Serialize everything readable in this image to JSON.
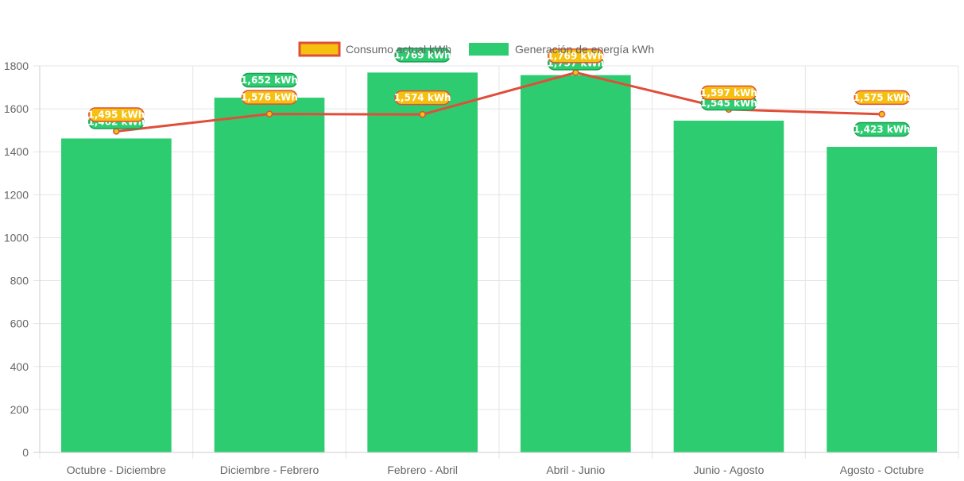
{
  "chart_data": {
    "type": "bar",
    "categories": [
      "Octubre - Diciembre",
      "Diciembre - Febrero",
      "Febrero - Abril",
      "Abril - Junio",
      "Junio - Agosto",
      "Agosto - Octubre"
    ],
    "series": [
      {
        "name": "Consumo actual kWh",
        "type": "line",
        "values": [
          1495,
          1576,
          1574,
          1769,
          1597,
          1575
        ],
        "labels": [
          "1,495 kWh",
          "1,576 kWh",
          "1,574 kWh",
          "1,769 kWh",
          "1,597 kWh",
          "1,575 kWh"
        ],
        "color": "#e04e3a",
        "label_color": "#f5c010"
      },
      {
        "name": "Generación de energía kWh",
        "type": "bar",
        "values": [
          1462,
          1652,
          1769,
          1757,
          1545,
          1423
        ],
        "labels": [
          "1,462 kWh",
          "1,652 kWh",
          "1,769 kWh",
          "1,757 kWh",
          "1,545 kWh",
          "1,423 kWh"
        ],
        "color": "#2ecc71"
      }
    ],
    "ylim": [
      0,
      1800
    ],
    "yticks": [
      "0",
      "200",
      "400",
      "600",
      "800",
      "1000",
      "1200",
      "1400",
      "1600",
      "1800"
    ],
    "grid": true,
    "legend_position": "top-center"
  }
}
